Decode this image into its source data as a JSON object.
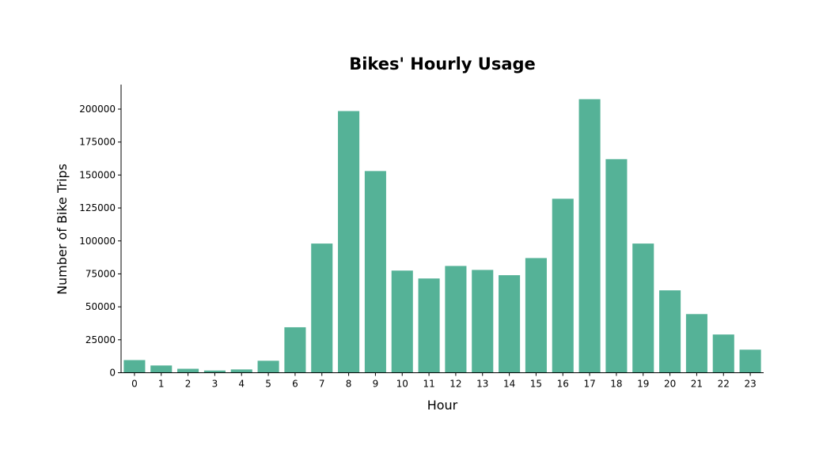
{
  "chart_data": {
    "type": "bar",
    "title": "Bikes' Hourly Usage",
    "xlabel": "Hour",
    "ylabel": "Number of Bike Trips",
    "categories": [
      "0",
      "1",
      "2",
      "3",
      "4",
      "5",
      "6",
      "7",
      "8",
      "9",
      "10",
      "11",
      "12",
      "13",
      "14",
      "15",
      "16",
      "17",
      "18",
      "19",
      "20",
      "21",
      "22",
      "23"
    ],
    "values": [
      9600,
      5500,
      3000,
      1700,
      2500,
      9100,
      34500,
      98000,
      198500,
      153000,
      77500,
      71500,
      81000,
      78000,
      74000,
      87000,
      132000,
      207500,
      162000,
      98000,
      62500,
      44500,
      29000,
      17500
    ],
    "ylim": [
      0,
      218000
    ],
    "yticks": [
      0,
      25000,
      50000,
      75000,
      100000,
      125000,
      150000,
      175000,
      200000
    ],
    "bar_color": "#55b297",
    "grid": false,
    "legend": "none"
  }
}
